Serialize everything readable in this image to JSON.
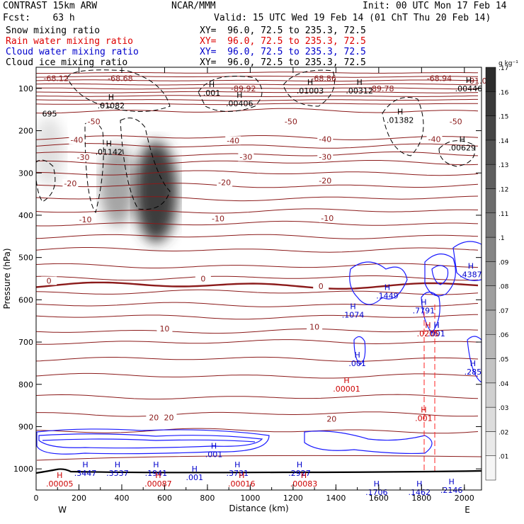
{
  "header": {
    "model": "CONTRAST 15km ARW",
    "org": "NCAR/MMM",
    "init": "Init: 00 UTC Mon 17 Feb 14",
    "fcst": "Fcst:    63 h",
    "valid": "Valid: 15 UTC Wed 19 Feb 14 (01 ChT Thu 20 Feb 14)"
  },
  "legend": [
    {
      "name": "Snow mixing ratio",
      "xy": "XY=  96.0, 72.5 to 235.3, 72.5",
      "color": "#000000"
    },
    {
      "name": "Rain water mixing ratio",
      "xy": "XY=  96.0, 72.5 to 235.3, 72.5",
      "color": "#dd0000"
    },
    {
      "name": "Cloud water mixing ratio",
      "xy": "XY=  96.0, 72.5 to 235.3, 72.5",
      "color": "#0000cc"
    },
    {
      "name": "Cloud ice mixing ratio",
      "xy": "XY=  96.0, 72.5 to 235.3, 72.5",
      "color": "#000000"
    }
  ],
  "chart_data": {
    "type": "contour-cross-section",
    "xlabel": "Distance (km)",
    "ylabel": "Pressure (hPa)",
    "xlim": [
      0,
      2080
    ],
    "ylim": [
      1050,
      50
    ],
    "x_ticks": [
      0,
      200,
      400,
      600,
      800,
      1000,
      1200,
      1400,
      1600,
      1800,
      2000
    ],
    "y_ticks": [
      100,
      200,
      300,
      400,
      500,
      600,
      700,
      800,
      900,
      1000
    ],
    "end_labels": {
      "left": "W",
      "right": "E"
    },
    "colorbar": {
      "unit": "g kg⁻¹",
      "levels": [
        ".01",
        ".02",
        ".03",
        ".04",
        ".05",
        ".06",
        ".07",
        ".08",
        ".09",
        ".1",
        ".11",
        ".12",
        ".13",
        ".14",
        ".15",
        ".16",
        ".17"
      ]
    },
    "temperature_isotherms": [
      {
        "value": -50,
        "labels": [
          {
            "x": 270,
            "p": 178,
            "text": "-50"
          },
          {
            "x": 1190,
            "p": 178,
            "text": "-50"
          },
          {
            "x": 1960,
            "p": 178,
            "text": "-50"
          }
        ]
      },
      {
        "value": -40,
        "labels": [
          {
            "x": 190,
            "p": 222,
            "text": "-40"
          },
          {
            "x": 920,
            "p": 223,
            "text": "-40"
          },
          {
            "x": 1350,
            "p": 220,
            "text": "-40"
          },
          {
            "x": 1860,
            "p": 220,
            "text": "-40"
          }
        ]
      },
      {
        "value": -30,
        "labels": [
          {
            "x": 220,
            "p": 263,
            "text": "-30"
          },
          {
            "x": 980,
            "p": 262,
            "text": "-30"
          },
          {
            "x": 1350,
            "p": 262,
            "text": "-30"
          }
        ]
      },
      {
        "value": -20,
        "labels": [
          {
            "x": 160,
            "p": 325,
            "text": "-20"
          },
          {
            "x": 880,
            "p": 322,
            "text": "-20"
          },
          {
            "x": 1350,
            "p": 318,
            "text": "-20"
          }
        ]
      },
      {
        "value": -10,
        "labels": [
          {
            "x": 230,
            "p": 410,
            "text": "-10"
          },
          {
            "x": 850,
            "p": 408,
            "text": "-10"
          },
          {
            "x": 1360,
            "p": 407,
            "text": "-10"
          }
        ]
      },
      {
        "value": 0,
        "labels": [
          {
            "x": 60,
            "p": 555,
            "text": "0"
          },
          {
            "x": 780,
            "p": 550,
            "text": "0"
          },
          {
            "x": 1330,
            "p": 568,
            "text": "0"
          }
        ]
      },
      {
        "value": 10,
        "labels": [
          {
            "x": 600,
            "p": 668,
            "text": "10"
          },
          {
            "x": 1300,
            "p": 664,
            "text": "10"
          }
        ]
      },
      {
        "value": 20,
        "labels": [
          {
            "x": 550,
            "p": 878,
            "text": "20"
          },
          {
            "x": 620,
            "p": 878,
            "text": "20"
          },
          {
            "x": 1380,
            "p": 882,
            "text": "20"
          }
        ]
      }
    ],
    "top_boundary_labels": [
      {
        "x": 60,
        "p": 66,
        "text": "-68.12"
      },
      {
        "x": 360,
        "p": 66,
        "text": "-68.68"
      },
      {
        "x": 1310,
        "p": 66,
        "text": "-68.86"
      },
      {
        "x": 1850,
        "p": 66,
        "text": "-68.94"
      },
      {
        "x": 2025,
        "p": 72,
        "text": "-91.0"
      },
      {
        "x": 935,
        "p": 90,
        "text": "-89.92"
      },
      {
        "x": 1580,
        "p": 90,
        "text": "-89.78"
      },
      {
        "x": 0,
        "p": 150,
        "text": "695"
      }
    ],
    "cloud_ice_maxima": [
      {
        "x": 350,
        "p": 130,
        "value": ".01082"
      },
      {
        "x": 950,
        "p": 125,
        "value": ".00406"
      },
      {
        "x": 1280,
        "p": 95,
        "value": ".01003"
      },
      {
        "x": 1510,
        "p": 95,
        "value": ".00312"
      },
      {
        "x": 1700,
        "p": 165,
        "value": ".01382"
      },
      {
        "x": 1990,
        "p": 230,
        "value": ".00629"
      },
      {
        "x": 2020,
        "p": 90,
        "value": ".00446"
      },
      {
        "x": 340,
        "p": 240,
        "value": ".01142"
      },
      {
        "x": 820,
        "p": 100,
        "value": ".001"
      }
    ],
    "snow_maxima": [
      {
        "x": 380,
        "p": 330,
        "value": 0.06
      },
      {
        "x": 560,
        "p": 345,
        "value": 0.13
      },
      {
        "x": 60,
        "p": 250,
        "value": 0.02
      }
    ],
    "cloud_water_maxima": [
      {
        "x": 1480,
        "p": 625,
        "value": ".1074"
      },
      {
        "x": 1640,
        "p": 580,
        "value": ".1449"
      },
      {
        "x": 1810,
        "p": 615,
        "value": ".7791"
      },
      {
        "x": 2030,
        "p": 530,
        "value": ".4387"
      },
      {
        "x": 2040,
        "p": 760,
        "value": ".285"
      },
      {
        "x": 1870,
        "p": 670,
        "value": ".001"
      },
      {
        "x": 1500,
        "p": 740,
        "value": ".001"
      },
      {
        "x": 230,
        "p": 1000,
        "value": ".3447"
      },
      {
        "x": 380,
        "p": 1000,
        "value": ".3537"
      },
      {
        "x": 560,
        "p": 1000,
        "value": ".1941"
      },
      {
        "x": 740,
        "p": 1010,
        "value": ".001"
      },
      {
        "x": 940,
        "p": 1000,
        "value": ".3731"
      },
      {
        "x": 1230,
        "p": 1000,
        "value": ".2927"
      },
      {
        "x": 1590,
        "p": 1045,
        "value": ".1706"
      },
      {
        "x": 1790,
        "p": 1045,
        "value": ".1462"
      },
      {
        "x": 1940,
        "p": 1040,
        "value": ".2146"
      },
      {
        "x": 830,
        "p": 955,
        "value": ".001"
      }
    ],
    "rain_maxima": [
      {
        "x": 110,
        "p": 1025,
        "value": ".00005"
      },
      {
        "x": 570,
        "p": 1025,
        "value": ".00087"
      },
      {
        "x": 960,
        "p": 1025,
        "value": ".00016"
      },
      {
        "x": 1250,
        "p": 1025,
        "value": ".00083"
      },
      {
        "x": 1450,
        "p": 800,
        "value": ".00001"
      },
      {
        "x": 1830,
        "p": 670,
        "value": ".0205"
      },
      {
        "x": 1810,
        "p": 870,
        "value": ".001"
      }
    ]
  }
}
